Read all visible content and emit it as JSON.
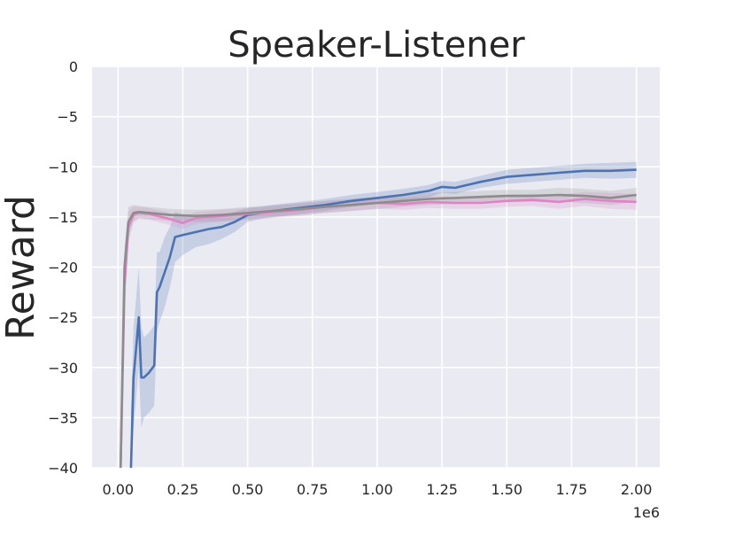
{
  "chart_data": {
    "type": "line",
    "title": "Speaker-Listener",
    "xlabel": "",
    "ylabel": "Reward",
    "x_offset_label": "1e6",
    "xlim": [
      -0.1,
      2.09
    ],
    "ylim": [
      -40,
      0
    ],
    "xticks": [
      0.0,
      0.25,
      0.5,
      0.75,
      1.0,
      1.25,
      1.5,
      1.75,
      2.0
    ],
    "xtick_labels": [
      "0.00",
      "0.25",
      "0.50",
      "0.75",
      "1.00",
      "1.25",
      "1.50",
      "1.75",
      "2.00"
    ],
    "yticks": [
      0,
      -5,
      -10,
      -15,
      -20,
      -25,
      -30,
      -35,
      -40
    ],
    "ytick_labels": [
      "0",
      "−5",
      "−10",
      "−15",
      "−20",
      "−25",
      "−30",
      "−35",
      "−40"
    ],
    "grid": true,
    "legend": "none",
    "series": [
      {
        "color": "#4c72b0",
        "x": [
          0.05,
          0.06,
          0.07,
          0.08,
          0.09,
          0.1,
          0.12,
          0.14,
          0.15,
          0.16,
          0.18,
          0.2,
          0.22,
          0.25,
          0.3,
          0.35,
          0.4,
          0.45,
          0.5,
          0.55,
          0.6,
          0.7,
          0.8,
          0.9,
          1.0,
          1.1,
          1.2,
          1.25,
          1.3,
          1.4,
          1.5,
          1.6,
          1.7,
          1.8,
          1.9,
          2.0
        ],
        "y": [
          -40,
          -31,
          -28,
          -25,
          -31,
          -31,
          -30.5,
          -29.8,
          -22.5,
          -22,
          -20.5,
          -19,
          -17,
          -16.8,
          -16.5,
          -16.2,
          -16,
          -15.5,
          -14.8,
          -14.6,
          -14.4,
          -14.1,
          -13.8,
          -13.4,
          -13.1,
          -12.8,
          -12.4,
          -12,
          -12.1,
          -11.5,
          -11,
          -10.8,
          -10.6,
          -10.4,
          -10.4,
          -10.3
        ],
        "band": [
          6,
          5,
          5,
          5,
          5,
          4,
          4,
          4,
          4,
          3.5,
          3.5,
          3,
          2.5,
          2,
          1.5,
          1.5,
          1.2,
          1,
          0.7,
          0.6,
          0.6,
          0.6,
          0.6,
          0.6,
          0.6,
          0.6,
          0.6,
          0.6,
          0.6,
          0.6,
          0.7,
          0.7,
          0.7,
          0.7,
          0.8,
          0.8
        ]
      },
      {
        "color": "#dd84c6",
        "x": [
          0.01,
          0.025,
          0.04,
          0.06,
          0.08,
          0.12,
          0.2,
          0.25,
          0.3,
          0.4,
          0.5,
          0.6,
          0.7,
          0.8,
          0.9,
          1.0,
          1.1,
          1.2,
          1.3,
          1.4,
          1.5,
          1.6,
          1.7,
          1.8,
          1.9,
          2.0
        ],
        "y": [
          -40,
          -22,
          -16,
          -14.8,
          -14.6,
          -14.7,
          -15.2,
          -15.6,
          -15.1,
          -14.9,
          -14.7,
          -14.5,
          -14.3,
          -14.0,
          -13.8,
          -13.6,
          -13.7,
          -13.5,
          -13.6,
          -13.6,
          -13.4,
          -13.3,
          -13.5,
          -13.2,
          -13.4,
          -13.5
        ],
        "band": [
          3,
          2,
          1.5,
          0.8,
          0.6,
          0.6,
          0.6,
          0.6,
          0.6,
          0.6,
          0.6,
          0.6,
          0.6,
          0.6,
          0.6,
          0.6,
          0.6,
          0.6,
          0.6,
          0.6,
          0.6,
          0.6,
          0.7,
          0.7,
          0.8,
          0.8
        ]
      },
      {
        "color": "#8c8c8c",
        "x": [
          0.01,
          0.025,
          0.04,
          0.06,
          0.08,
          0.12,
          0.2,
          0.3,
          0.4,
          0.5,
          0.6,
          0.7,
          0.8,
          0.9,
          1.0,
          1.1,
          1.2,
          1.3,
          1.4,
          1.5,
          1.6,
          1.7,
          1.8,
          1.9,
          2.0
        ],
        "y": [
          -40,
          -20,
          -15.5,
          -14.6,
          -14.5,
          -14.6,
          -14.8,
          -14.9,
          -14.8,
          -14.6,
          -14.4,
          -14.2,
          -14.0,
          -13.8,
          -13.6,
          -13.4,
          -13.2,
          -13.1,
          -13.0,
          -12.9,
          -12.9,
          -12.8,
          -12.9,
          -13.1,
          -12.8
        ],
        "band": [
          3,
          2,
          1.5,
          0.8,
          0.6,
          0.6,
          0.6,
          0.6,
          0.6,
          0.6,
          0.6,
          0.6,
          0.6,
          0.6,
          0.6,
          0.6,
          0.6,
          0.6,
          0.6,
          0.6,
          0.6,
          0.7,
          0.7,
          0.7,
          0.7
        ]
      }
    ]
  }
}
